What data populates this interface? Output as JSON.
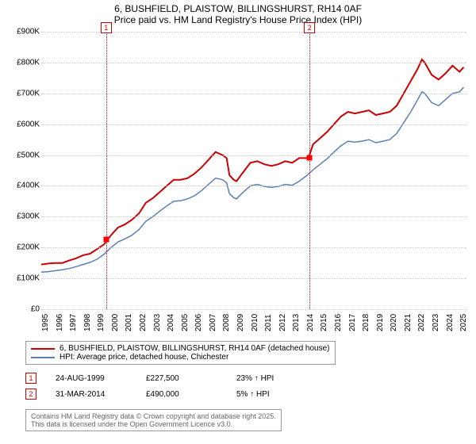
{
  "title": {
    "line1": "6, BUSHFIELD, PLAISTOW, BILLINGSHURST, RH14 0AF",
    "line2": "Price paid vs. HM Land Registry's House Price Index (HPI)",
    "fontsize": 12
  },
  "chart": {
    "type": "line",
    "background_color": "#ffffff",
    "grid_color": "#cccccc",
    "ylim": [
      0,
      900000
    ],
    "ytick_step": 100000,
    "yticks": [
      {
        "v": 0,
        "label": "£0"
      },
      {
        "v": 100000,
        "label": "£100K"
      },
      {
        "v": 200000,
        "label": "£200K"
      },
      {
        "v": 300000,
        "label": "£300K"
      },
      {
        "v": 400000,
        "label": "£400K"
      },
      {
        "v": 500000,
        "label": "£500K"
      },
      {
        "v": 600000,
        "label": "£600K"
      },
      {
        "v": 700000,
        "label": "£700K"
      },
      {
        "v": 800000,
        "label": "£800K"
      },
      {
        "v": 900000,
        "label": "£900K"
      }
    ],
    "xlim": [
      1995,
      2025.5
    ],
    "xticks": [
      1995,
      1996,
      1997,
      1998,
      1999,
      2000,
      2001,
      2002,
      2003,
      2004,
      2005,
      2006,
      2007,
      2008,
      2009,
      2010,
      2011,
      2012,
      2013,
      2014,
      2015,
      2016,
      2017,
      2018,
      2019,
      2020,
      2021,
      2022,
      2023,
      2024,
      2025
    ],
    "label_fontsize": 10,
    "series": [
      {
        "name": "property",
        "label": "6, BUSHFIELD, PLAISTOW, BILLINGSHURST, RH14 0AF (detached house)",
        "color": "#cc0000",
        "line_width": 2,
        "data": [
          [
            1995.0,
            145000
          ],
          [
            1995.5,
            148000
          ],
          [
            1996.0,
            150000
          ],
          [
            1996.5,
            150000
          ],
          [
            1997.0,
            158000
          ],
          [
            1997.5,
            165000
          ],
          [
            1998.0,
            175000
          ],
          [
            1998.5,
            180000
          ],
          [
            1999.0,
            195000
          ],
          [
            1999.5,
            210000
          ],
          [
            2000.0,
            240000
          ],
          [
            2000.5,
            265000
          ],
          [
            2001.0,
            275000
          ],
          [
            2001.5,
            290000
          ],
          [
            2002.0,
            310000
          ],
          [
            2002.5,
            345000
          ],
          [
            2003.0,
            360000
          ],
          [
            2003.5,
            380000
          ],
          [
            2004.0,
            400000
          ],
          [
            2004.5,
            420000
          ],
          [
            2005.0,
            420000
          ],
          [
            2005.5,
            425000
          ],
          [
            2006.0,
            440000
          ],
          [
            2006.5,
            460000
          ],
          [
            2007.0,
            485000
          ],
          [
            2007.5,
            510000
          ],
          [
            2008.0,
            500000
          ],
          [
            2008.3,
            490000
          ],
          [
            2008.5,
            435000
          ],
          [
            2008.8,
            420000
          ],
          [
            2009.0,
            415000
          ],
          [
            2009.5,
            445000
          ],
          [
            2010.0,
            475000
          ],
          [
            2010.5,
            480000
          ],
          [
            2011.0,
            470000
          ],
          [
            2011.5,
            465000
          ],
          [
            2012.0,
            470000
          ],
          [
            2012.5,
            480000
          ],
          [
            2013.0,
            475000
          ],
          [
            2013.5,
            490000
          ],
          [
            2014.0,
            490000
          ],
          [
            2014.2,
            495000
          ],
          [
            2014.5,
            535000
          ],
          [
            2015.0,
            555000
          ],
          [
            2015.5,
            575000
          ],
          [
            2016.0,
            600000
          ],
          [
            2016.5,
            625000
          ],
          [
            2017.0,
            640000
          ],
          [
            2017.5,
            635000
          ],
          [
            2018.0,
            640000
          ],
          [
            2018.5,
            645000
          ],
          [
            2019.0,
            630000
          ],
          [
            2019.5,
            635000
          ],
          [
            2020.0,
            640000
          ],
          [
            2020.5,
            660000
          ],
          [
            2021.0,
            700000
          ],
          [
            2021.5,
            740000
          ],
          [
            2022.0,
            780000
          ],
          [
            2022.3,
            810000
          ],
          [
            2022.5,
            800000
          ],
          [
            2023.0,
            760000
          ],
          [
            2023.5,
            745000
          ],
          [
            2024.0,
            765000
          ],
          [
            2024.5,
            790000
          ],
          [
            2025.0,
            770000
          ],
          [
            2025.3,
            785000
          ]
        ]
      },
      {
        "name": "hpi",
        "label": "HPI: Average price, detached house, Chichester",
        "color": "#5b7fb5",
        "line_width": 1.5,
        "data": [
          [
            1995.0,
            120000
          ],
          [
            1995.5,
            122000
          ],
          [
            1996.0,
            125000
          ],
          [
            1996.5,
            128000
          ],
          [
            1997.0,
            132000
          ],
          [
            1997.5,
            138000
          ],
          [
            1998.0,
            145000
          ],
          [
            1998.5,
            152000
          ],
          [
            1999.0,
            162000
          ],
          [
            1999.5,
            178000
          ],
          [
            2000.0,
            200000
          ],
          [
            2000.5,
            218000
          ],
          [
            2001.0,
            228000
          ],
          [
            2001.5,
            240000
          ],
          [
            2002.0,
            258000
          ],
          [
            2002.5,
            285000
          ],
          [
            2003.0,
            300000
          ],
          [
            2003.5,
            318000
          ],
          [
            2004.0,
            335000
          ],
          [
            2004.5,
            350000
          ],
          [
            2005.0,
            352000
          ],
          [
            2005.5,
            358000
          ],
          [
            2006.0,
            368000
          ],
          [
            2006.5,
            385000
          ],
          [
            2007.0,
            405000
          ],
          [
            2007.5,
            425000
          ],
          [
            2008.0,
            420000
          ],
          [
            2008.3,
            410000
          ],
          [
            2008.5,
            375000
          ],
          [
            2008.8,
            362000
          ],
          [
            2009.0,
            358000
          ],
          [
            2009.5,
            380000
          ],
          [
            2010.0,
            400000
          ],
          [
            2010.5,
            405000
          ],
          [
            2011.0,
            398000
          ],
          [
            2011.5,
            395000
          ],
          [
            2012.0,
            398000
          ],
          [
            2012.5,
            405000
          ],
          [
            2013.0,
            402000
          ],
          [
            2013.5,
            415000
          ],
          [
            2014.0,
            432000
          ],
          [
            2014.5,
            452000
          ],
          [
            2015.0,
            470000
          ],
          [
            2015.5,
            488000
          ],
          [
            2016.0,
            510000
          ],
          [
            2016.5,
            530000
          ],
          [
            2017.0,
            545000
          ],
          [
            2017.5,
            542000
          ],
          [
            2018.0,
            545000
          ],
          [
            2018.5,
            550000
          ],
          [
            2019.0,
            540000
          ],
          [
            2019.5,
            545000
          ],
          [
            2020.0,
            550000
          ],
          [
            2020.5,
            570000
          ],
          [
            2021.0,
            605000
          ],
          [
            2021.5,
            640000
          ],
          [
            2022.0,
            680000
          ],
          [
            2022.3,
            705000
          ],
          [
            2022.5,
            700000
          ],
          [
            2023.0,
            670000
          ],
          [
            2023.5,
            660000
          ],
          [
            2024.0,
            680000
          ],
          [
            2024.5,
            700000
          ],
          [
            2025.0,
            705000
          ],
          [
            2025.3,
            720000
          ]
        ]
      }
    ],
    "sale_markers": [
      {
        "n": 1,
        "x": 1999.65,
        "y": 227500,
        "color": "#cc0000"
      },
      {
        "n": 2,
        "x": 2014.25,
        "y": 490000,
        "color": "#cc0000"
      }
    ]
  },
  "legend": {
    "rows": [
      {
        "color": "#cc0000",
        "label": "6, BUSHFIELD, PLAISTOW, BILLINGSHURST, RH14 0AF (detached house)"
      },
      {
        "color": "#5b7fb5",
        "label": "HPI: Average price, detached house, Chichester"
      }
    ]
  },
  "sales": [
    {
      "n": 1,
      "color": "#cc0000",
      "date": "24-AUG-1999",
      "price": "£227,500",
      "delta": "23% ↑ HPI"
    },
    {
      "n": 2,
      "color": "#cc0000",
      "date": "31-MAR-2014",
      "price": "£490,000",
      "delta": "5% ↑ HPI"
    }
  ],
  "copyright": {
    "line1": "Contains HM Land Registry data © Crown copyright and database right 2025.",
    "line2": "This data is licensed under the Open Government Licence v3.0."
  }
}
